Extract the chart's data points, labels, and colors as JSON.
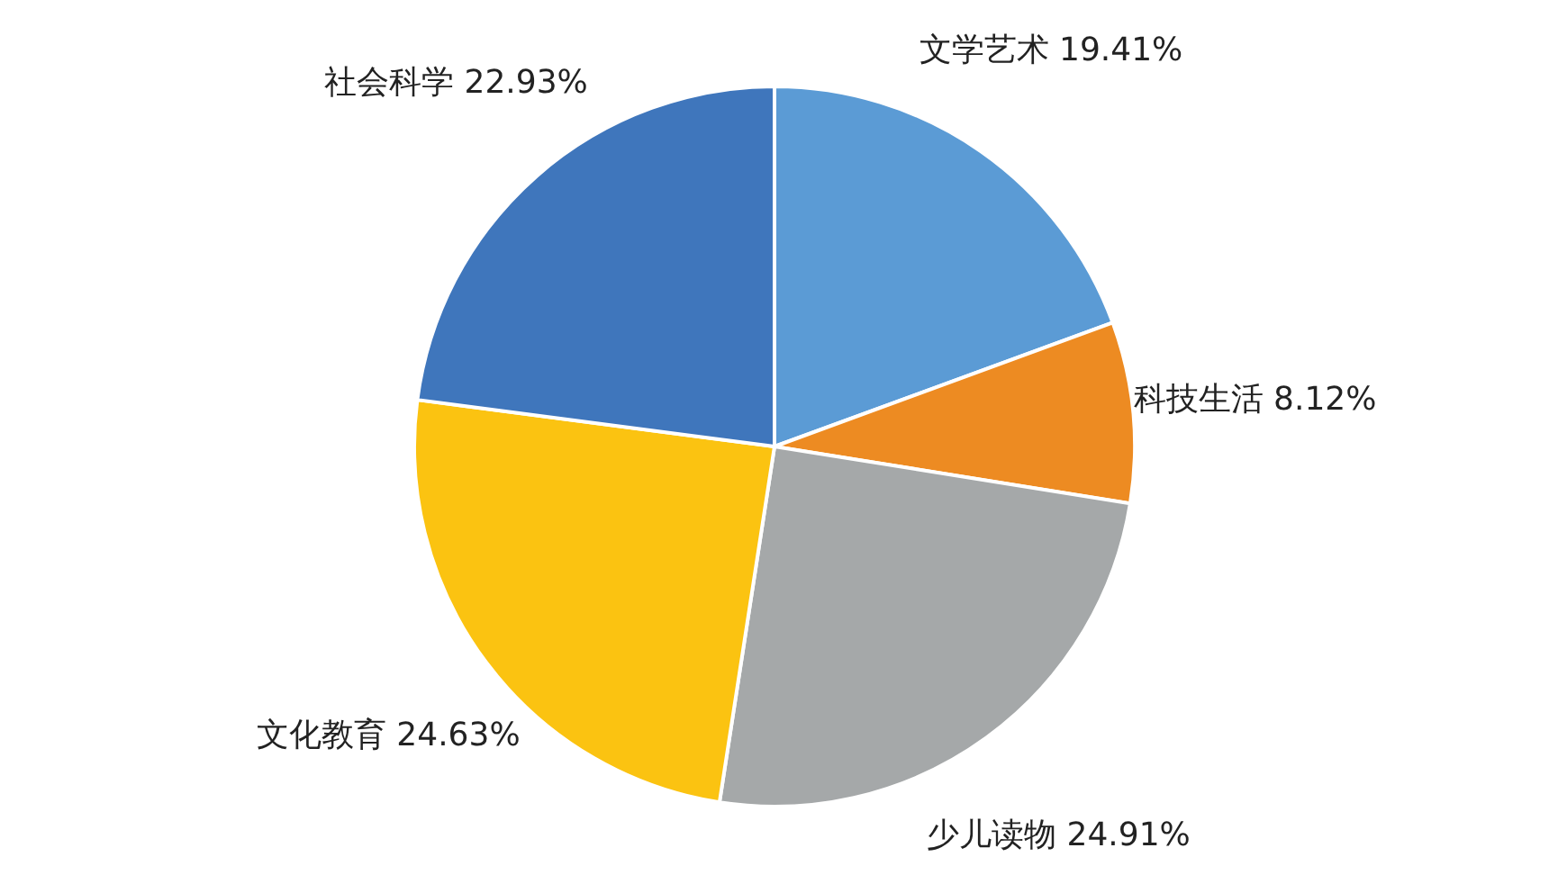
{
  "chart_data": {
    "type": "pie",
    "categories": [
      "文学艺术",
      "科技生活",
      "少儿读物",
      "文化教育",
      "社会科学"
    ],
    "values": [
      19.41,
      8.12,
      24.91,
      24.63,
      22.93
    ],
    "value_labels": [
      "19.41%",
      "8.12%",
      "24.91%",
      "24.63%",
      "22.93%"
    ],
    "colors": [
      "#5b9bd5",
      "#ed8b22",
      "#a5a8a9",
      "#fbc311",
      "#3f76bc"
    ]
  }
}
